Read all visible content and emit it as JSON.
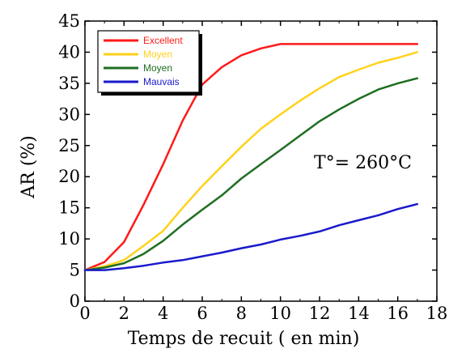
{
  "chart_data": {
    "type": "line",
    "title": "",
    "xlabel": "Temps de recuit ( en min)",
    "ylabel": "AR (%)",
    "xlim": [
      0,
      18
    ],
    "ylim": [
      0,
      45
    ],
    "x_ticks": [
      0,
      2,
      4,
      6,
      8,
      10,
      12,
      14,
      16,
      18
    ],
    "y_ticks": [
      0,
      5,
      10,
      15,
      20,
      25,
      30,
      35,
      40,
      45
    ],
    "grid": false,
    "legend_position": "top-left",
    "annotation": "T°= 260°C",
    "series": [
      {
        "name": "Excellent",
        "color": "#ff1a1a",
        "x": [
          0,
          1,
          2,
          3,
          4,
          5,
          6,
          7,
          8,
          9,
          10,
          11,
          12,
          13,
          14,
          15,
          16,
          17
        ],
        "y": [
          5,
          6.3,
          9.5,
          15.5,
          22,
          29,
          34.8,
          37.6,
          39.5,
          40.6,
          41.3,
          41.3,
          41.3,
          41.3,
          41.3,
          41.3,
          41.3,
          41.3
        ]
      },
      {
        "name": "Moyen",
        "color": "#ffd21a",
        "x": [
          0,
          1,
          2,
          3,
          4,
          5,
          6,
          7,
          8,
          9,
          10,
          11,
          12,
          13,
          14,
          15,
          16,
          17
        ],
        "y": [
          5,
          5.6,
          6.6,
          8.9,
          11.3,
          15,
          18.5,
          21.7,
          24.8,
          27.7,
          30,
          32.2,
          34.2,
          36,
          37.2,
          38.3,
          39.1,
          40
        ]
      },
      {
        "name": "Moyen",
        "color": "#1f6e22",
        "x": [
          0,
          1,
          2,
          3,
          4,
          5,
          6,
          7,
          8,
          9,
          10,
          11,
          12,
          13,
          14,
          15,
          16,
          17
        ],
        "y": [
          5,
          5.4,
          6.1,
          7.6,
          9.7,
          12.3,
          14.7,
          17,
          19.7,
          22,
          24.3,
          26.6,
          28.9,
          30.8,
          32.5,
          34,
          35,
          35.8
        ]
      },
      {
        "name": "Mauvais",
        "color": "#1a1acc",
        "x": [
          0,
          1,
          2,
          3,
          4,
          5,
          6,
          7,
          8,
          9,
          10,
          11,
          12,
          13,
          14,
          15,
          16,
          17
        ],
        "y": [
          5,
          5,
          5.3,
          5.7,
          6.2,
          6.6,
          7.2,
          7.8,
          8.5,
          9.1,
          9.9,
          10.5,
          11.2,
          12.2,
          13,
          13.8,
          14.8,
          15.6
        ]
      }
    ]
  }
}
